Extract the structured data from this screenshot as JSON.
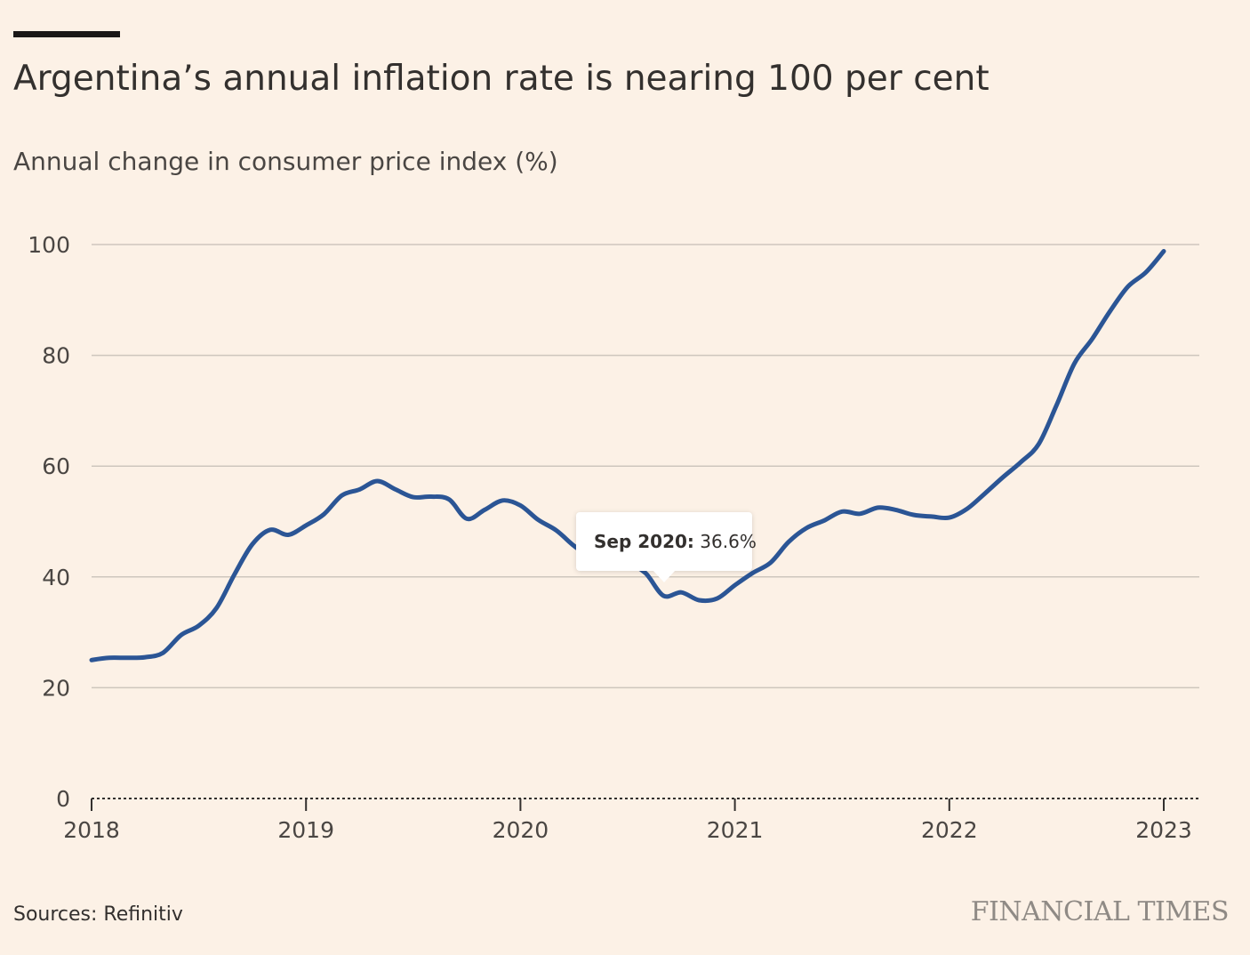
{
  "header": {
    "title": "Argentina’s annual inflation rate is nearing 100 per cent",
    "subtitle": "Annual change in consumer price index (%)"
  },
  "tooltip": {
    "label": "Sep 2020:",
    "value": "36.6%"
  },
  "footer": {
    "source": "Sources: Refinitiv",
    "brand": "FINANCIAL TIMES"
  },
  "colors": {
    "background": "#fcf1e6",
    "line": "#2b5595",
    "grid": "#cec6bd"
  },
  "chart_data": {
    "type": "line",
    "title": "Argentina’s annual inflation rate is nearing 100 per cent",
    "subtitle": "Annual change in consumer price index (%)",
    "xlim": [
      2018,
      2023.17
    ],
    "ylim": [
      0,
      100
    ],
    "y_ticks": [
      0,
      20,
      40,
      60,
      80,
      100
    ],
    "x_ticks": [
      2018,
      2019,
      2020,
      2021,
      2022,
      2023
    ],
    "grid": true,
    "legend": "none",
    "series": [
      {
        "x": [
          2018.0,
          2018.083,
          2018.167,
          2018.25,
          2018.333,
          2018.417,
          2018.5,
          2018.583,
          2018.667,
          2018.75,
          2018.833,
          2018.917,
          2019.0,
          2019.083,
          2019.167,
          2019.25,
          2019.333,
          2019.417,
          2019.5,
          2019.583,
          2019.667,
          2019.75,
          2019.833,
          2019.917,
          2020.0,
          2020.083,
          2020.167,
          2020.25,
          2020.333,
          2020.417,
          2020.5,
          2020.583,
          2020.667,
          2020.75,
          2020.833,
          2020.917,
          2021.0,
          2021.083,
          2021.167,
          2021.25,
          2021.333,
          2021.417,
          2021.5,
          2021.583,
          2021.667,
          2021.75,
          2021.833,
          2021.917,
          2022.0,
          2022.083,
          2022.167,
          2022.25,
          2022.333,
          2022.417,
          2022.5,
          2022.583,
          2022.667,
          2022.75,
          2022.833,
          2022.917,
          2023.0
        ],
        "values": [
          25.0,
          25.4,
          25.4,
          25.5,
          26.3,
          29.5,
          31.2,
          34.4,
          40.5,
          45.9,
          48.5,
          47.6,
          49.3,
          51.3,
          54.7,
          55.8,
          57.3,
          55.8,
          54.4,
          54.5,
          54.0,
          50.5,
          52.1,
          53.8,
          52.9,
          50.3,
          48.4,
          45.6,
          43.4,
          42.8,
          42.4,
          40.7,
          36.6,
          37.2,
          35.8,
          36.1,
          38.5,
          40.7,
          42.6,
          46.3,
          48.8,
          50.2,
          51.8,
          51.4,
          52.5,
          52.1,
          51.2,
          50.9,
          50.7,
          52.3,
          55.1,
          58.0,
          60.7,
          64.0,
          71.0,
          78.5,
          83.0,
          88.0,
          92.4,
          95.0,
          98.8
        ]
      }
    ]
  }
}
